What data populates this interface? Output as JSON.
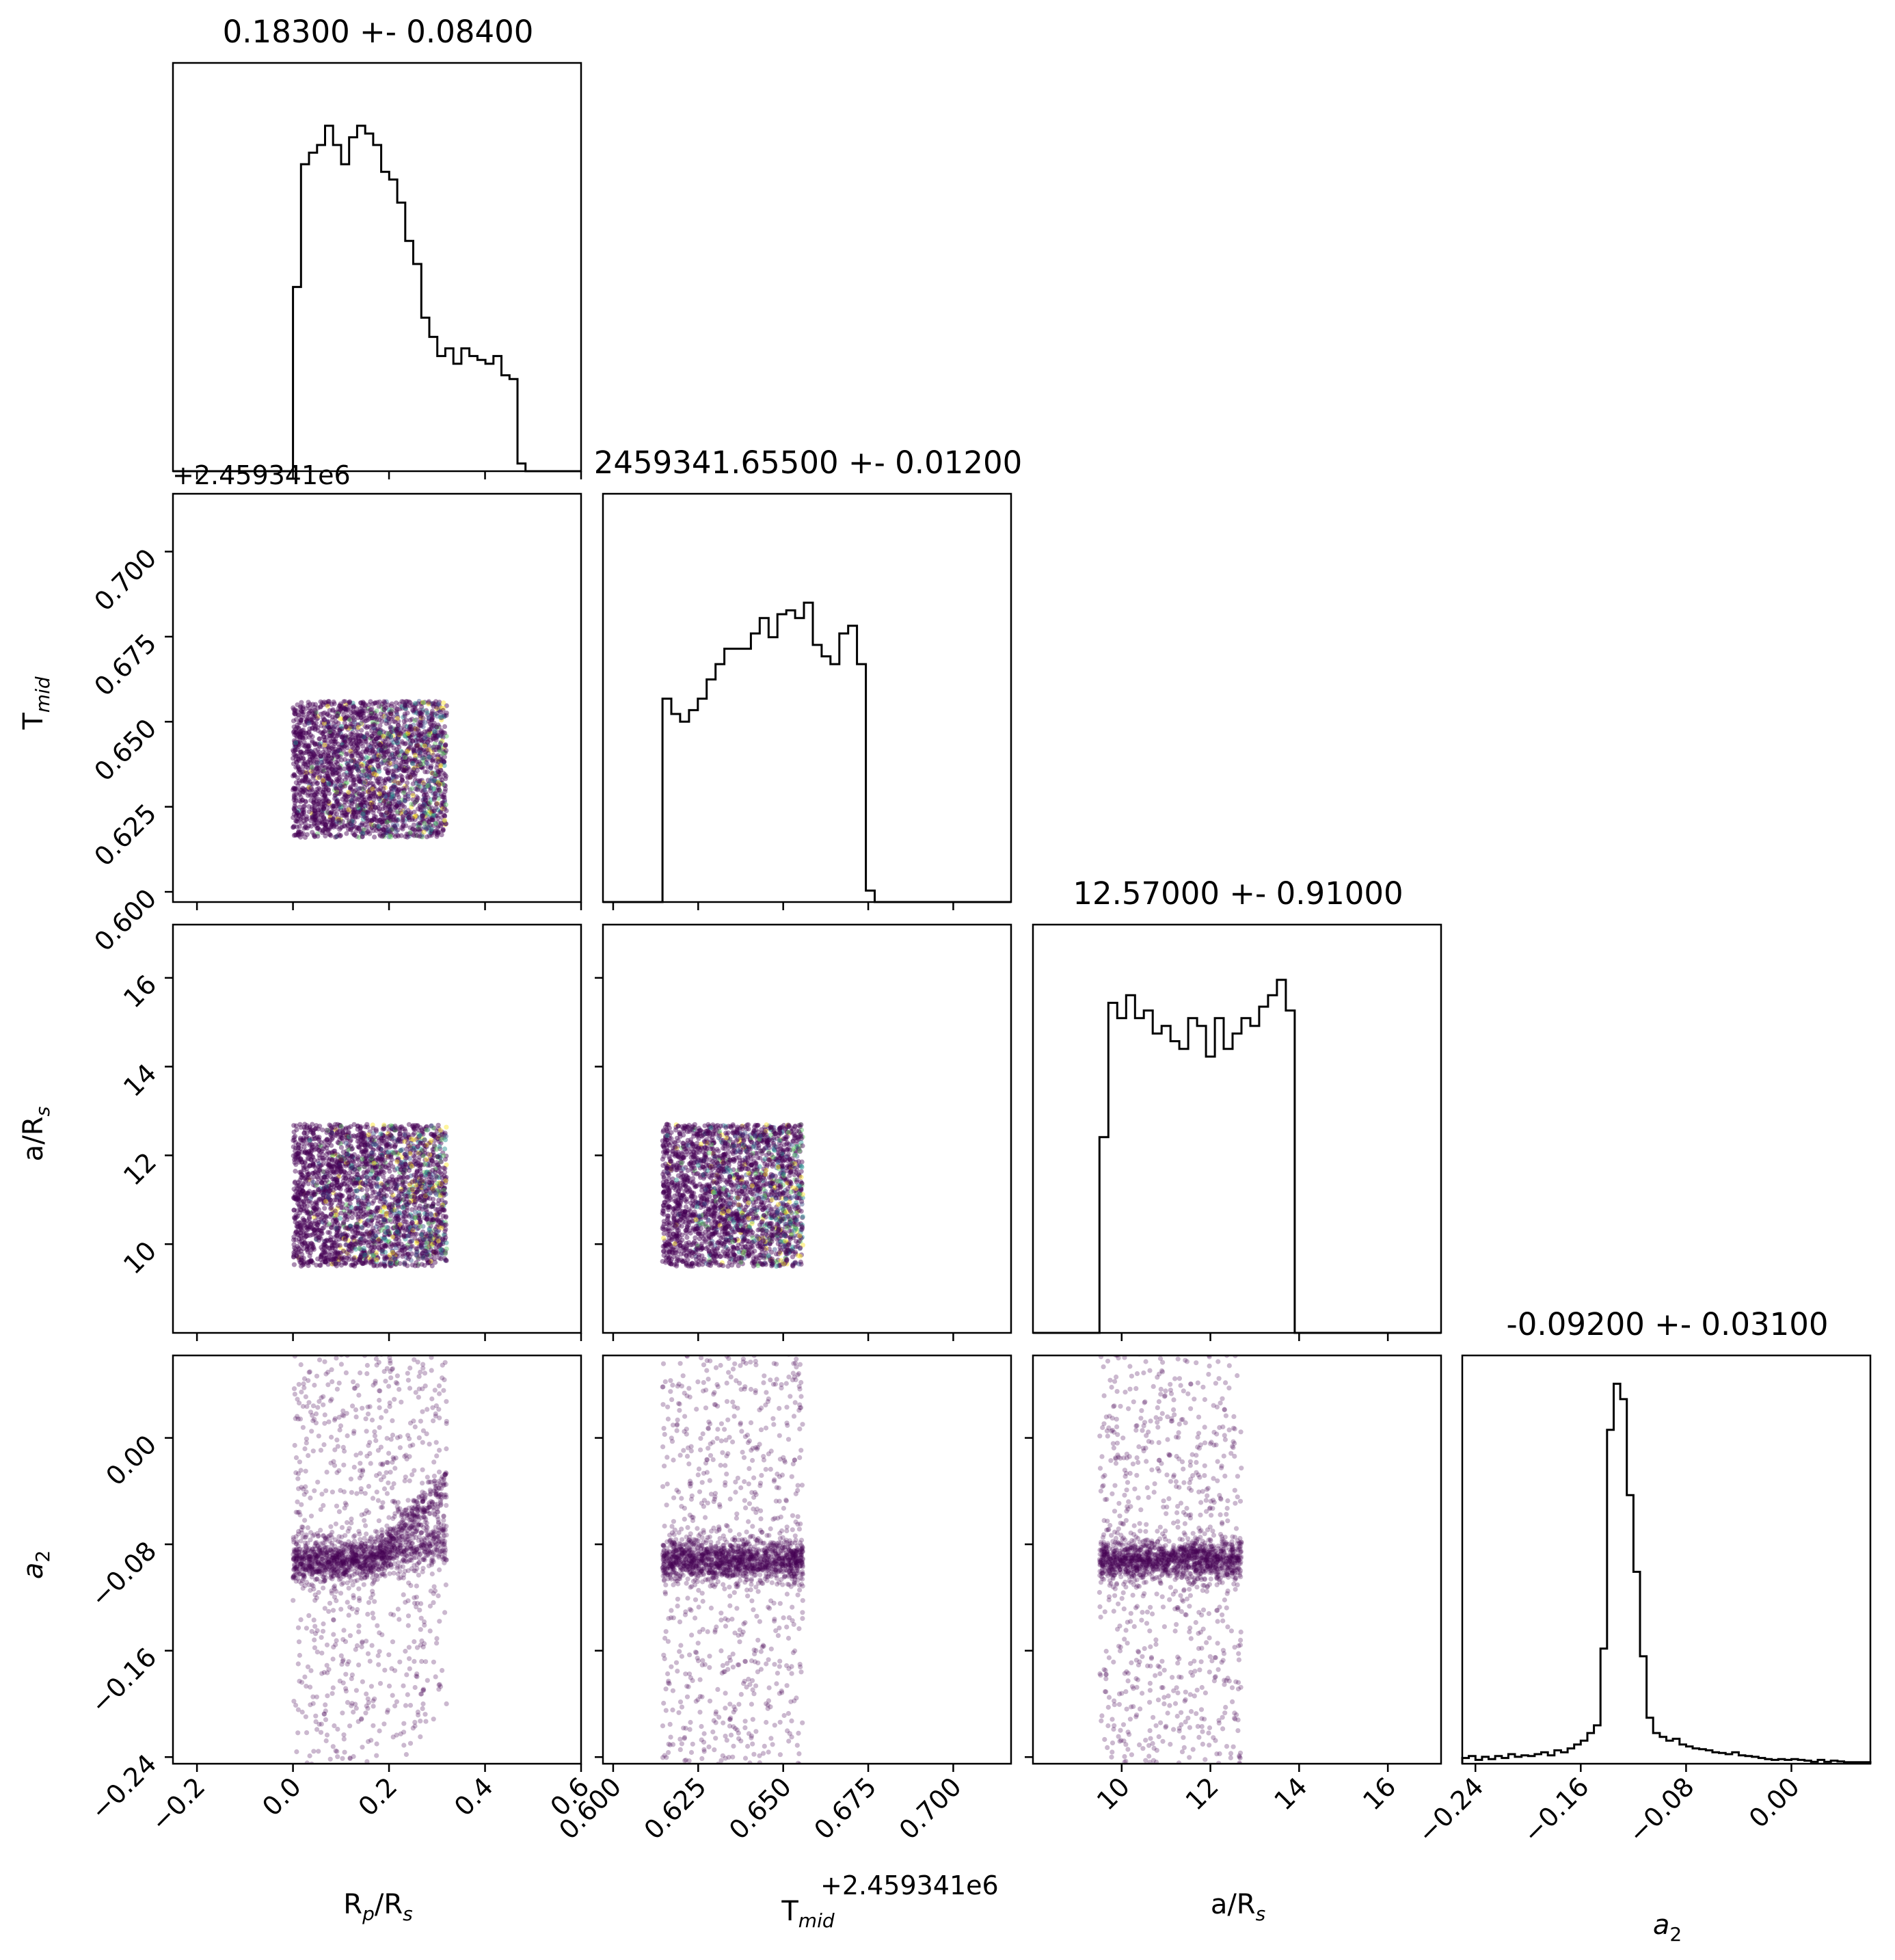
{
  "figure": {
    "type": "corner_plot"
  },
  "colors": {
    "hist_line": "#000000",
    "scatter": "#440154",
    "scatter_accents": [
      "#21908d",
      "#fde725",
      "#3b528b",
      "#5dc863"
    ]
  },
  "chart_data": [
    {
      "type": "histogram",
      "panel": "diag-0",
      "parameter": "R_p/R_s",
      "title": "0.18300 +- 0.08400",
      "xlim": [
        -0.25,
        0.6
      ],
      "bins": {
        "start": 0.0,
        "width": 0.0167,
        "counts": [
          0.48,
          0.8,
          0.83,
          0.85,
          0.9,
          0.85,
          0.8,
          0.87,
          0.9,
          0.88,
          0.85,
          0.78,
          0.76,
          0.7,
          0.6,
          0.54,
          0.4,
          0.35,
          0.3,
          0.32,
          0.28,
          0.32,
          0.3,
          0.29,
          0.28,
          0.3,
          0.25,
          0.24,
          0.02
        ]
      }
    },
    {
      "type": "histogram",
      "panel": "diag-1",
      "parameter": "T_mid",
      "title": "2459341.65500 +- 0.01200",
      "xlim": [
        0.597,
        0.717
      ],
      "offset_label": "+2.459341e6",
      "xticks": [
        "0.600",
        "0.625",
        "0.650",
        "0.675",
        "0.700"
      ],
      "xlabel": "T_mid",
      "bins": {
        "start": 0.6145,
        "width": 0.0026,
        "counts": [
          0.53,
          0.49,
          0.47,
          0.5,
          0.53,
          0.58,
          0.62,
          0.66,
          0.66,
          0.66,
          0.7,
          0.74,
          0.69,
          0.75,
          0.76,
          0.74,
          0.78,
          0.67,
          0.64,
          0.62,
          0.7,
          0.72,
          0.62,
          0.03
        ]
      }
    },
    {
      "type": "histogram",
      "panel": "diag-2",
      "parameter": "a/R_s",
      "title": "12.57000 +- 0.91000",
      "xlim": [
        8.0,
        17.2
      ],
      "xticks": [
        "10",
        "12",
        "14",
        "16"
      ],
      "xlabel": "a/R_s",
      "bins": {
        "start": 9.5,
        "width": 0.2,
        "counts": [
          0.51,
          0.86,
          0.82,
          0.88,
          0.82,
          0.84,
          0.78,
          0.8,
          0.76,
          0.74,
          0.82,
          0.8,
          0.72,
          0.82,
          0.74,
          0.78,
          0.82,
          0.8,
          0.85,
          0.88,
          0.92,
          0.84
        ]
      }
    },
    {
      "type": "histogram",
      "panel": "diag-3",
      "parameter": "a_2",
      "title": "-0.09200 +- 0.03100",
      "xlim": [
        -0.25,
        0.06
      ],
      "xticks": [
        "−0.24",
        "−0.16",
        "−0.08",
        "0.00"
      ],
      "xlabel": "a_2",
      "bins": {
        "start": -0.25,
        "width": 0.005,
        "counts": [
          0.015,
          0.02,
          0.01,
          0.018,
          0.012,
          0.02,
          0.015,
          0.025,
          0.018,
          0.022,
          0.02,
          0.025,
          0.03,
          0.022,
          0.035,
          0.03,
          0.04,
          0.05,
          0.06,
          0.08,
          0.1,
          0.3,
          0.87,
          0.99,
          0.95,
          0.7,
          0.5,
          0.28,
          0.12,
          0.08,
          0.07,
          0.06,
          0.065,
          0.05,
          0.045,
          0.04,
          0.038,
          0.035,
          0.03,
          0.028,
          0.025,
          0.03,
          0.022,
          0.02,
          0.018,
          0.015,
          0.012,
          0.01,
          0.012,
          0.01,
          0.012,
          0.01,
          0.008,
          0.005,
          0.01,
          0.005,
          0.008,
          0.006,
          0.004,
          0.004,
          0.004,
          0.004
        ]
      }
    },
    {
      "type": "scatter",
      "panel": "scatter-1-0",
      "x": "R_p/R_s",
      "y": "T_mid",
      "xlim": [
        -0.25,
        0.6
      ],
      "ylim": [
        0.597,
        0.717
      ],
      "y_offset_label": "+2.459341e6",
      "yticks": [
        "0.600",
        "0.625",
        "0.650",
        "0.675",
        "0.700"
      ],
      "ylabel": "T_mid",
      "x_range": [
        0.0,
        0.32
      ],
      "y_range": [
        0.616,
        0.656
      ],
      "n_points": 2600
    },
    {
      "type": "scatter",
      "panel": "scatter-2-0",
      "x": "R_p/R_s",
      "y": "a/R_s",
      "xlim": [
        -0.25,
        0.6
      ],
      "ylim": [
        8.0,
        17.2
      ],
      "yticks": [
        "10",
        "12",
        "14",
        "16"
      ],
      "ylabel": "a/R_s",
      "x_range": [
        0.0,
        0.32
      ],
      "y_range": [
        9.5,
        12.7
      ],
      "n_points": 2600
    },
    {
      "type": "scatter",
      "panel": "scatter-2-1",
      "x": "T_mid",
      "y": "a/R_s",
      "xlim": [
        0.597,
        0.717
      ],
      "ylim": [
        8.0,
        17.2
      ],
      "x_range": [
        0.6145,
        0.6558
      ],
      "y_range": [
        9.5,
        12.7
      ],
      "n_points": 2400
    },
    {
      "type": "scatter",
      "panel": "scatter-3-0",
      "x": "R_p/R_s",
      "y": "a_2",
      "xlim": [
        -0.25,
        0.6
      ],
      "ylim": [
        -0.245,
        0.062
      ],
      "xticks": [
        "−0.2",
        "0.0",
        "0.2",
        "0.4",
        "0.6"
      ],
      "yticks": [
        "−0.24",
        "−0.16",
        "−0.08",
        "0.00"
      ],
      "xlabel": "R_p/R_s",
      "ylabel": "a_2",
      "x_range": [
        0.0,
        0.32
      ],
      "y_center": -0.092,
      "n_points": 2200
    },
    {
      "type": "scatter",
      "panel": "scatter-3-1",
      "x": "T_mid",
      "y": "a_2",
      "xlim": [
        0.597,
        0.717
      ],
      "ylim": [
        -0.245,
        0.062
      ],
      "x_range": [
        0.6145,
        0.6558
      ],
      "y_center": -0.092,
      "n_points": 2000
    },
    {
      "type": "scatter",
      "panel": "scatter-3-2",
      "x": "a/R_s",
      "y": "a_2",
      "xlim": [
        8.0,
        17.2
      ],
      "ylim": [
        -0.245,
        0.062
      ],
      "x_range": [
        9.5,
        12.7
      ],
      "y_center": -0.092,
      "n_points": 2000
    }
  ]
}
